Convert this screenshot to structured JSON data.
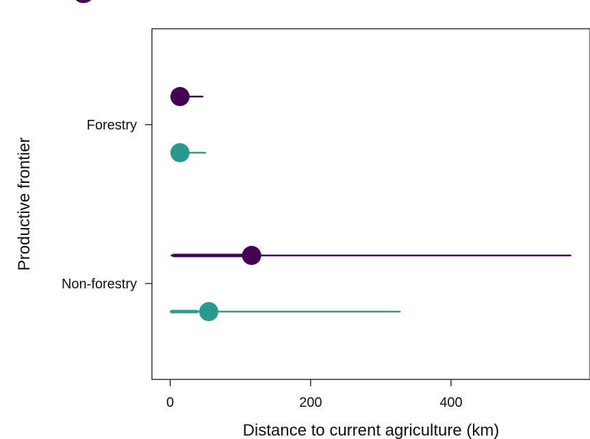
{
  "chart_data": {
    "type": "scatter",
    "title": "",
    "xlabel": "Distance to current agriculture (km)",
    "ylabel": "Productive frontier",
    "xlim": [
      -12,
      600
    ],
    "x_ticks": [
      0,
      200,
      400
    ],
    "x_tick_labels": [
      "0",
      "200",
      "400"
    ],
    "categories": [
      "Forestry",
      "Non-forestry"
    ],
    "grid": false,
    "legend": "none",
    "series": [
      {
        "color": "#440154",
        "points": [
          {
            "category": "Forestry",
            "x": 14,
            "thick_range": [
              14,
              14
            ],
            "thin_range": [
              14,
              46
            ]
          },
          {
            "category": "Non-forestry",
            "x": 116,
            "thick_range": [
              5,
              116
            ],
            "thin_range": [
              2,
              570
            ]
          }
        ]
      },
      {
        "color": "#2A9A8E",
        "points": [
          {
            "category": "Forestry",
            "x": 14,
            "thick_range": [
              14,
              14
            ],
            "thin_range": [
              14,
              50
            ]
          },
          {
            "category": "Non-forestry",
            "x": 55,
            "thick_range": [
              2,
              38
            ],
            "thin_range": [
              2,
              327
            ]
          }
        ]
      }
    ]
  }
}
